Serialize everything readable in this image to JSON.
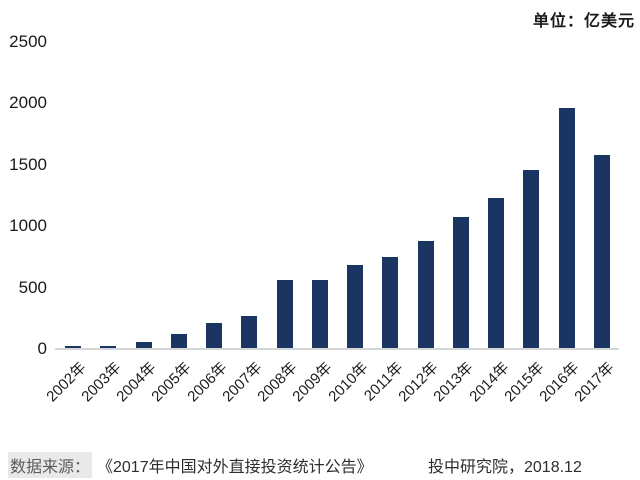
{
  "unit_label": "单位：亿美元",
  "colors": {
    "bar": "#1a3561",
    "axis_line": "#d6d6d6",
    "text": "#1a1a1a",
    "source_text": "#2e2e2e",
    "source_prefix_bg": "#e9e9e9",
    "source_prefix_color": "#5c5c5c",
    "background": "#ffffff"
  },
  "chart_data": {
    "type": "bar",
    "title": "",
    "unit": "亿美元",
    "categories": [
      "2002年",
      "2003年",
      "2004年",
      "2005年",
      "2006年",
      "2007年",
      "2008年",
      "2009年",
      "2010年",
      "2011年",
      "2012年",
      "2013年",
      "2014年",
      "2015年",
      "2016年",
      "2017年"
    ],
    "values": [
      27,
      28.5,
      55,
      122.6,
      211.6,
      265.1,
      559.1,
      565.3,
      688.1,
      746.5,
      878,
      1078.4,
      1231.2,
      1456.7,
      1961.5,
      1582.9
    ],
    "xlabel": "",
    "ylabel": "",
    "ylim": [
      0,
      2500
    ],
    "yticks": [
      0,
      500,
      1000,
      1500,
      2000,
      2500
    ],
    "grid": false,
    "legend_position": "none",
    "bar_color": "#1a3561",
    "x_tick_rotation": -45
  },
  "source": {
    "prefix": "数据来源：",
    "reference": "《2017年中国对外直接投资统计公告》",
    "publisher": "投中研究院，2018.12"
  }
}
